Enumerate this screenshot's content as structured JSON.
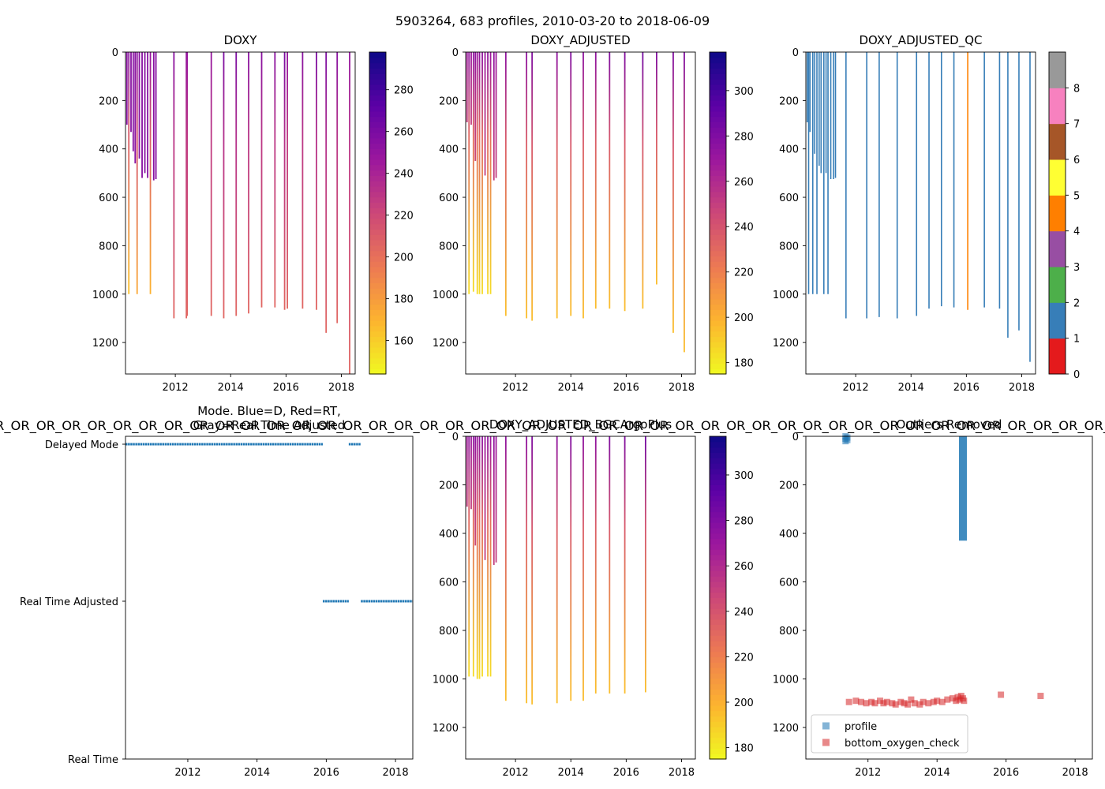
{
  "suptitle": "5903264, 683 profiles, 2010-03-20 to 2018-06-09",
  "or_banner": "R_OR_OR_OR_OR_OR_OR_OR_OR_OR_OR_OR_OR_OR_OR_OR_OR_OR_OR_OR_OR_OR_OR_OR_OR_OR_OR_OR_OR_OR_OR_OR_OR_OR_OR_OR_OR_OR_OR_OR_OR_OR_OR_OR_",
  "chart_data": [
    {
      "id": "doxy",
      "type": "heatmap",
      "title": "DOXY",
      "x_ticks": [
        2012,
        2014,
        2016,
        2018
      ],
      "xlim": [
        2010.2,
        2018.5
      ],
      "y_ticks": [
        0,
        200,
        400,
        600,
        800,
        1000,
        1200
      ],
      "ylim": [
        1330,
        0
      ],
      "colorbar": {
        "ticks": [
          160,
          180,
          200,
          220,
          240,
          260,
          280
        ],
        "range": [
          144,
          298
        ],
        "cmap": "plasma_r"
      },
      "profiles": [
        {
          "x": 2010.25,
          "depth": 300,
          "top": 255,
          "bottom": 255
        },
        {
          "x": 2010.32,
          "depth": 1000,
          "top": 255,
          "bottom": 165
        },
        {
          "x": 2010.4,
          "depth": 330,
          "top": 255,
          "bottom": 255
        },
        {
          "x": 2010.48,
          "depth": 410,
          "top": 255,
          "bottom": 255
        },
        {
          "x": 2010.55,
          "depth": 460,
          "top": 255,
          "bottom": 255
        },
        {
          "x": 2010.62,
          "depth": 1000,
          "top": 255,
          "bottom": 175
        },
        {
          "x": 2010.7,
          "depth": 440,
          "top": 255,
          "bottom": 255
        },
        {
          "x": 2010.8,
          "depth": 520,
          "top": 255,
          "bottom": 255
        },
        {
          "x": 2010.9,
          "depth": 500,
          "top": 255,
          "bottom": 255
        },
        {
          "x": 2011.0,
          "depth": 520,
          "top": 255,
          "bottom": 255
        },
        {
          "x": 2011.1,
          "depth": 1000,
          "top": 250,
          "bottom": 170
        },
        {
          "x": 2011.22,
          "depth": 530,
          "top": 255,
          "bottom": 255
        },
        {
          "x": 2011.3,
          "depth": 525,
          "top": 255,
          "bottom": 255
        },
        {
          "x": 2011.95,
          "depth": 1100,
          "top": 255,
          "bottom": 205
        },
        {
          "x": 2012.4,
          "depth": 1100,
          "top": 250,
          "bottom": 205
        },
        {
          "x": 2012.43,
          "depth": 1090,
          "top": 250,
          "bottom": 205
        },
        {
          "x": 2013.3,
          "depth": 1090,
          "top": 250,
          "bottom": 205
        },
        {
          "x": 2013.75,
          "depth": 1100,
          "top": 260,
          "bottom": 205
        },
        {
          "x": 2014.2,
          "depth": 1090,
          "top": 260,
          "bottom": 205
        },
        {
          "x": 2014.65,
          "depth": 1080,
          "top": 255,
          "bottom": 205
        },
        {
          "x": 2015.12,
          "depth": 1055,
          "top": 255,
          "bottom": 205
        },
        {
          "x": 2015.6,
          "depth": 1055,
          "top": 255,
          "bottom": 205
        },
        {
          "x": 2015.95,
          "depth": 1065,
          "top": 260,
          "bottom": 205
        },
        {
          "x": 2016.05,
          "depth": 1060,
          "top": 250,
          "bottom": 205
        },
        {
          "x": 2016.6,
          "depth": 1060,
          "top": 255,
          "bottom": 205
        },
        {
          "x": 2017.1,
          "depth": 1065,
          "top": 260,
          "bottom": 205
        },
        {
          "x": 2017.45,
          "depth": 1160,
          "top": 260,
          "bottom": 205
        },
        {
          "x": 2017.85,
          "depth": 1120,
          "top": 255,
          "bottom": 205
        },
        {
          "x": 2018.3,
          "depth": 1330,
          "top": 250,
          "bottom": 205
        }
      ]
    },
    {
      "id": "doxy_adjusted",
      "type": "heatmap",
      "title": "DOXY_ADJUSTED",
      "x_ticks": [
        2012,
        2014,
        2016,
        2018
      ],
      "xlim": [
        2010.2,
        2018.5
      ],
      "y_ticks": [
        0,
        200,
        400,
        600,
        800,
        1000,
        1200
      ],
      "ylim": [
        1330,
        0
      ],
      "colorbar": {
        "ticks": [
          180,
          200,
          220,
          240,
          260,
          280,
          300
        ],
        "range": [
          175,
          317
        ],
        "cmap": "plasma_r"
      },
      "profiles": [
        {
          "x": 2010.25,
          "depth": 290,
          "top": 270,
          "bottom": 250
        },
        {
          "x": 2010.32,
          "depth": 1000,
          "top": 275,
          "bottom": 185
        },
        {
          "x": 2010.4,
          "depth": 300,
          "top": 270,
          "bottom": 250
        },
        {
          "x": 2010.48,
          "depth": 990,
          "top": 275,
          "bottom": 185
        },
        {
          "x": 2010.55,
          "depth": 450,
          "top": 275,
          "bottom": 245
        },
        {
          "x": 2010.62,
          "depth": 1000,
          "top": 270,
          "bottom": 185
        },
        {
          "x": 2010.7,
          "depth": 1000,
          "top": 275,
          "bottom": 185
        },
        {
          "x": 2010.8,
          "depth": 1000,
          "top": 275,
          "bottom": 185
        },
        {
          "x": 2010.9,
          "depth": 510,
          "top": 270,
          "bottom": 250
        },
        {
          "x": 2011.0,
          "depth": 1000,
          "top": 275,
          "bottom": 185
        },
        {
          "x": 2011.1,
          "depth": 1000,
          "top": 270,
          "bottom": 185
        },
        {
          "x": 2011.22,
          "depth": 530,
          "top": 275,
          "bottom": 250
        },
        {
          "x": 2011.3,
          "depth": 520,
          "top": 270,
          "bottom": 250
        },
        {
          "x": 2011.65,
          "depth": 1090,
          "top": 275,
          "bottom": 195
        },
        {
          "x": 2012.4,
          "depth": 1100,
          "top": 275,
          "bottom": 195
        },
        {
          "x": 2012.6,
          "depth": 1110,
          "top": 280,
          "bottom": 195
        },
        {
          "x": 2013.5,
          "depth": 1100,
          "top": 275,
          "bottom": 195
        },
        {
          "x": 2014.0,
          "depth": 1090,
          "top": 280,
          "bottom": 195
        },
        {
          "x": 2014.45,
          "depth": 1100,
          "top": 275,
          "bottom": 195
        },
        {
          "x": 2014.9,
          "depth": 1060,
          "top": 275,
          "bottom": 195
        },
        {
          "x": 2015.4,
          "depth": 1060,
          "top": 280,
          "bottom": 195
        },
        {
          "x": 2015.95,
          "depth": 1070,
          "top": 280,
          "bottom": 195
        },
        {
          "x": 2016.6,
          "depth": 1060,
          "top": 285,
          "bottom": 195
        },
        {
          "x": 2017.1,
          "depth": 960,
          "top": 280,
          "bottom": 195
        },
        {
          "x": 2017.7,
          "depth": 1160,
          "top": 280,
          "bottom": 195
        },
        {
          "x": 2018.1,
          "depth": 1240,
          "top": 280,
          "bottom": 195
        }
      ]
    },
    {
      "id": "doxy_adjusted_qc",
      "type": "heatmap",
      "title": "DOXY_ADJUSTED_QC",
      "x_ticks": [
        2012,
        2014,
        2016,
        2018
      ],
      "xlim": [
        2010.2,
        2018.5
      ],
      "y_ticks": [
        0,
        200,
        400,
        600,
        800,
        1000,
        1200
      ],
      "ylim": [
        1330,
        0
      ],
      "colorbar": {
        "ticks": [
          0,
          1,
          2,
          3,
          4,
          5,
          6,
          7,
          8
        ],
        "range": [
          0,
          9
        ],
        "cmap": "qc"
      },
      "profiles": [
        {
          "x": 2010.25,
          "depth": 290,
          "qc": 1
        },
        {
          "x": 2010.3,
          "depth": 1000,
          "qc": 1
        },
        {
          "x": 2010.35,
          "depth": 330,
          "qc": 1
        },
        {
          "x": 2010.45,
          "depth": 1000,
          "qc": 1
        },
        {
          "x": 2010.52,
          "depth": 420,
          "qc": 1
        },
        {
          "x": 2010.6,
          "depth": 1000,
          "qc": 1
        },
        {
          "x": 2010.68,
          "depth": 470,
          "qc": 1
        },
        {
          "x": 2010.75,
          "depth": 500,
          "qc": 1
        },
        {
          "x": 2010.85,
          "depth": 1000,
          "qc": 1
        },
        {
          "x": 2010.93,
          "depth": 500,
          "qc": 1
        },
        {
          "x": 2011.0,
          "depth": 1000,
          "qc": 1
        },
        {
          "x": 2011.1,
          "depth": 525,
          "qc": 1
        },
        {
          "x": 2011.2,
          "depth": 525,
          "qc": 1
        },
        {
          "x": 2011.27,
          "depth": 520,
          "qc": 1
        },
        {
          "x": 2011.65,
          "depth": 1100,
          "qc": 1
        },
        {
          "x": 2012.4,
          "depth": 1100,
          "qc": 1
        },
        {
          "x": 2012.85,
          "depth": 1095,
          "qc": 1
        },
        {
          "x": 2013.5,
          "depth": 1100,
          "qc": 1
        },
        {
          "x": 2014.2,
          "depth": 1090,
          "qc": 1
        },
        {
          "x": 2014.65,
          "depth": 1060,
          "qc": 1
        },
        {
          "x": 2015.1,
          "depth": 1050,
          "qc": 1
        },
        {
          "x": 2015.55,
          "depth": 1055,
          "qc": 1
        },
        {
          "x": 2016.05,
          "depth": 1065,
          "qc": 4
        },
        {
          "x": 2016.65,
          "depth": 1055,
          "qc": 1
        },
        {
          "x": 2017.2,
          "depth": 1060,
          "qc": 1
        },
        {
          "x": 2017.5,
          "depth": 1180,
          "qc": 1
        },
        {
          "x": 2017.9,
          "depth": 1150,
          "qc": 1
        },
        {
          "x": 2018.3,
          "depth": 1280,
          "qc": 1
        }
      ]
    },
    {
      "id": "mode",
      "type": "scatter",
      "title": "Mode. Blue=D, Red=RT,",
      "subtitle": "Gray=Real Time Adjusted",
      "x_ticks": [
        2012,
        2014,
        2016,
        2018
      ],
      "xlim": [
        2010.2,
        2018.5
      ],
      "y_ticklabels": [
        "Delayed Mode",
        "Real Time Adjusted",
        "Real Time"
      ],
      "segments": [
        {
          "level": "Delayed Mode",
          "from": 2010.2,
          "to": 2015.9
        },
        {
          "level": "Delayed Mode",
          "from": 2016.65,
          "to": 2017.0
        },
        {
          "level": "Real Time Adjusted",
          "from": 2015.9,
          "to": 2016.65
        },
        {
          "level": "Real Time Adjusted",
          "from": 2017.0,
          "to": 2018.5
        }
      ]
    },
    {
      "id": "doxy_bgcargoplus",
      "type": "heatmap",
      "title": "DOXY_ADJUSTED_BGCArgoPlus",
      "x_ticks": [
        2012,
        2014,
        2016,
        2018
      ],
      "xlim": [
        2010.2,
        2018.5
      ],
      "y_ticks": [
        0,
        200,
        400,
        600,
        800,
        1000,
        1200
      ],
      "ylim": [
        1330,
        0
      ],
      "colorbar": {
        "ticks": [
          180,
          200,
          220,
          240,
          260,
          280,
          300
        ],
        "range": [
          175,
          317
        ],
        "cmap": "plasma_r"
      },
      "profiles": [
        {
          "x": 2010.25,
          "depth": 290,
          "top": 270,
          "bottom": 250
        },
        {
          "x": 2010.32,
          "depth": 990,
          "top": 275,
          "bottom": 185
        },
        {
          "x": 2010.4,
          "depth": 300,
          "top": 270,
          "bottom": 250
        },
        {
          "x": 2010.48,
          "depth": 990,
          "top": 275,
          "bottom": 185
        },
        {
          "x": 2010.55,
          "depth": 450,
          "top": 275,
          "bottom": 245
        },
        {
          "x": 2010.62,
          "depth": 1000,
          "top": 270,
          "bottom": 185
        },
        {
          "x": 2010.7,
          "depth": 1000,
          "top": 275,
          "bottom": 185
        },
        {
          "x": 2010.8,
          "depth": 990,
          "top": 275,
          "bottom": 185
        },
        {
          "x": 2010.9,
          "depth": 510,
          "top": 270,
          "bottom": 250
        },
        {
          "x": 2011.0,
          "depth": 990,
          "top": 275,
          "bottom": 185
        },
        {
          "x": 2011.1,
          "depth": 990,
          "top": 270,
          "bottom": 185
        },
        {
          "x": 2011.22,
          "depth": 530,
          "top": 275,
          "bottom": 250
        },
        {
          "x": 2011.3,
          "depth": 520,
          "top": 270,
          "bottom": 250
        },
        {
          "x": 2011.65,
          "depth": 1090,
          "top": 275,
          "bottom": 195
        },
        {
          "x": 2012.4,
          "depth": 1100,
          "top": 275,
          "bottom": 195
        },
        {
          "x": 2012.6,
          "depth": 1105,
          "top": 280,
          "bottom": 195
        },
        {
          "x": 2013.5,
          "depth": 1100,
          "top": 275,
          "bottom": 195
        },
        {
          "x": 2014.0,
          "depth": 1090,
          "top": 280,
          "bottom": 195
        },
        {
          "x": 2014.45,
          "depth": 1090,
          "top": 275,
          "bottom": 195
        },
        {
          "x": 2014.9,
          "depth": 1060,
          "top": 275,
          "bottom": 195
        },
        {
          "x": 2015.4,
          "depth": 1060,
          "top": 280,
          "bottom": 195
        },
        {
          "x": 2015.95,
          "depth": 1060,
          "top": 280,
          "bottom": 195
        },
        {
          "x": 2016.7,
          "depth": 1055,
          "top": 285,
          "bottom": 195
        }
      ]
    },
    {
      "id": "outliers",
      "type": "scatter",
      "title": "Outliers Removed",
      "x_ticks": [
        2012,
        2014,
        2016,
        2018
      ],
      "xlim": [
        2010.2,
        2018.5
      ],
      "y_ticks": [
        0,
        200,
        400,
        600,
        800,
        1000,
        1200
      ],
      "ylim": [
        1330,
        0
      ],
      "legend": {
        "location": "lower left",
        "entries": [
          {
            "label": "profile",
            "color": "#1f77b4"
          },
          {
            "label": "bottom_oxygen_check",
            "color": "#d62728"
          }
        ]
      },
      "series": [
        {
          "name": "profile",
          "points": [
            [
              2011.35,
              0
            ],
            [
              2011.35,
              10
            ],
            [
              2011.35,
              20
            ],
            [
              2011.4,
              5
            ],
            [
              2011.4,
              15
            ]
          ],
          "column": {
            "x": 2014.75,
            "from": 0,
            "to": 430
          }
        },
        {
          "name": "bottom_oxygen_check",
          "points": [
            [
              2011.45,
              1095
            ],
            [
              2011.65,
              1090
            ],
            [
              2011.8,
              1095
            ],
            [
              2011.95,
              1100
            ],
            [
              2012.1,
              1095
            ],
            [
              2012.2,
              1100
            ],
            [
              2012.35,
              1090
            ],
            [
              2012.45,
              1100
            ],
            [
              2012.55,
              1095
            ],
            [
              2012.7,
              1100
            ],
            [
              2012.8,
              1105
            ],
            [
              2012.95,
              1095
            ],
            [
              2013.05,
              1100
            ],
            [
              2013.15,
              1105
            ],
            [
              2013.25,
              1085
            ],
            [
              2013.35,
              1100
            ],
            [
              2013.5,
              1105
            ],
            [
              2013.6,
              1095
            ],
            [
              2013.75,
              1100
            ],
            [
              2013.9,
              1095
            ],
            [
              2014.0,
              1090
            ],
            [
              2014.15,
              1095
            ],
            [
              2014.3,
              1085
            ],
            [
              2014.45,
              1080
            ],
            [
              2014.55,
              1090
            ],
            [
              2014.6,
              1075
            ],
            [
              2014.65,
              1085
            ],
            [
              2014.7,
              1070
            ],
            [
              2014.75,
              1080
            ],
            [
              2014.78,
              1090
            ],
            [
              2015.85,
              1065
            ],
            [
              2017.0,
              1070
            ]
          ]
        }
      ]
    }
  ]
}
